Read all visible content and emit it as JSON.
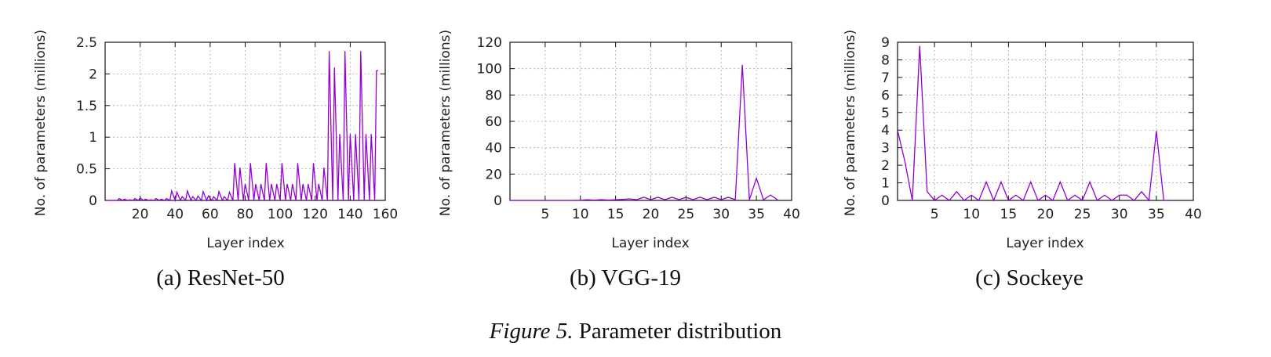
{
  "figure": {
    "caption_label": "Figure 5.",
    "caption_text": " Parameter distribution"
  },
  "chart_data": [
    {
      "type": "line",
      "subcaption": "(a)  ResNet-50",
      "xlabel": "Layer index",
      "ylabel": "No. of parameters (millions)",
      "xlim": [
        0,
        160
      ],
      "ylim": [
        0,
        2.5
      ],
      "xticks": [
        20,
        40,
        60,
        80,
        100,
        120,
        140,
        160
      ],
      "yticks": [
        0,
        0.5,
        1,
        1.5,
        2,
        2.5
      ],
      "ytick_labels": [
        "0",
        "0.5",
        "1",
        "1.5",
        "2",
        "2.5"
      ],
      "grid": true,
      "color": "#9400d3",
      "series": [
        {
          "x": [
            1,
            7,
            8,
            10,
            11,
            13,
            14,
            16,
            17,
            19,
            20,
            22,
            23,
            25,
            26,
            28,
            29,
            31,
            32,
            34,
            35,
            37,
            38,
            40,
            41,
            43,
            44,
            46,
            47,
            49,
            50,
            52,
            53,
            55,
            56,
            58,
            59,
            61,
            62,
            64,
            65,
            67,
            68,
            70,
            71,
            73,
            74,
            76,
            77,
            79,
            80,
            82,
            83,
            85,
            86,
            88,
            89,
            91,
            92,
            94,
            95,
            97,
            98,
            100,
            101,
            103,
            104,
            106,
            107,
            109,
            110,
            112,
            113,
            115,
            116,
            118,
            119,
            121,
            122,
            124,
            125,
            127,
            128,
            130,
            131,
            133,
            134,
            136,
            137,
            139,
            140,
            142,
            143,
            145,
            146,
            148,
            149,
            151,
            152,
            154,
            155,
            156
          ],
          "y": [
            0,
            0,
            0.03,
            0,
            0.02,
            0,
            0.01,
            0,
            0.03,
            0,
            0.04,
            0,
            0.02,
            0,
            0.01,
            0,
            0.03,
            0,
            0.02,
            0,
            0.03,
            0,
            0.15,
            0,
            0.13,
            0,
            0.06,
            0,
            0.15,
            0,
            0.06,
            0,
            0.07,
            0,
            0.14,
            0,
            0.07,
            0,
            0.06,
            0,
            0.14,
            0,
            0.06,
            0,
            0.13,
            0,
            0.59,
            0,
            0.52,
            0,
            0.26,
            0,
            0.59,
            0,
            0.26,
            0,
            0.26,
            0,
            0.59,
            0,
            0.26,
            0,
            0.26,
            0,
            0.59,
            0,
            0.26,
            0,
            0.26,
            0,
            0.59,
            0,
            0.26,
            0,
            0.26,
            0,
            0.59,
            0,
            0.26,
            0,
            0.52,
            0,
            2.36,
            0,
            2.1,
            0,
            1.05,
            0,
            2.36,
            0,
            1.05,
            0,
            1.05,
            0,
            2.36,
            0,
            1.05,
            0,
            1.05,
            0,
            2.05,
            2.05
          ]
        }
      ]
    },
    {
      "type": "line",
      "subcaption": "(b)  VGG-19",
      "xlabel": "Layer index",
      "ylabel": "No. of parameters (millions)",
      "xlim": [
        0,
        40
      ],
      "ylim": [
        0,
        120
      ],
      "xticks": [
        5,
        10,
        15,
        20,
        25,
        30,
        35,
        40
      ],
      "yticks": [
        0,
        20,
        40,
        60,
        80,
        100,
        120
      ],
      "ytick_labels": [
        "0",
        "20",
        "40",
        "60",
        "80",
        "100",
        "120"
      ],
      "grid": true,
      "color": "#9400d3",
      "series": [
        {
          "x": [
            0,
            1,
            2,
            3,
            4,
            5,
            6,
            7,
            8,
            9,
            10,
            11,
            12,
            13,
            14,
            15,
            16,
            17,
            18,
            19,
            20,
            21,
            22,
            23,
            24,
            25,
            26,
            27,
            28,
            29,
            30,
            31,
            32,
            33,
            34,
            35,
            36,
            37,
            38
          ],
          "y": [
            0,
            0,
            0,
            0,
            0,
            0,
            0,
            0,
            0,
            0,
            0.1,
            0.5,
            0.2,
            0.6,
            0.3,
            0.5,
            0.8,
            1.2,
            0.6,
            2.4,
            0.6,
            2.4,
            0.6,
            2.4,
            0.6,
            2.4,
            0.6,
            2.4,
            0.6,
            2.4,
            0.6,
            2.4,
            0.6,
            102.8,
            0.5,
            16.8,
            0.5,
            4.1,
            0.5
          ]
        }
      ]
    },
    {
      "type": "line",
      "subcaption": "(c)  Sockeye",
      "xlabel": "Layer index",
      "ylabel": "No. of parameters (millions)",
      "xlim": [
        0,
        40
      ],
      "ylim": [
        0,
        9
      ],
      "xticks": [
        5,
        10,
        15,
        20,
        25,
        30,
        35,
        40
      ],
      "yticks": [
        0,
        1,
        2,
        3,
        4,
        5,
        6,
        7,
        8,
        9
      ],
      "ytick_labels": [
        "0",
        "1",
        "2",
        "3",
        "4",
        "5",
        "6",
        "7",
        "8",
        "9"
      ],
      "grid": true,
      "color": "#9400d3",
      "series": [
        {
          "x": [
            0,
            1,
            2,
            3,
            4,
            5,
            6,
            7,
            8,
            9,
            10,
            11,
            12,
            13,
            14,
            15,
            16,
            17,
            18,
            19,
            20,
            21,
            22,
            23,
            24,
            25,
            26,
            27,
            28,
            29,
            30,
            31,
            32,
            33,
            34,
            35,
            36,
            37
          ],
          "y": [
            4,
            2.2,
            0,
            8.8,
            0.5,
            0,
            0.3,
            0,
            0.5,
            0,
            0.3,
            0,
            1.05,
            0,
            1.05,
            0,
            0.3,
            0,
            1.05,
            0,
            0.3,
            0,
            1.05,
            0,
            0.3,
            0,
            1.05,
            0,
            0.3,
            0,
            0.3,
            0.3,
            0,
            0.5,
            0,
            3.95,
            0,
            0
          ]
        }
      ]
    }
  ]
}
